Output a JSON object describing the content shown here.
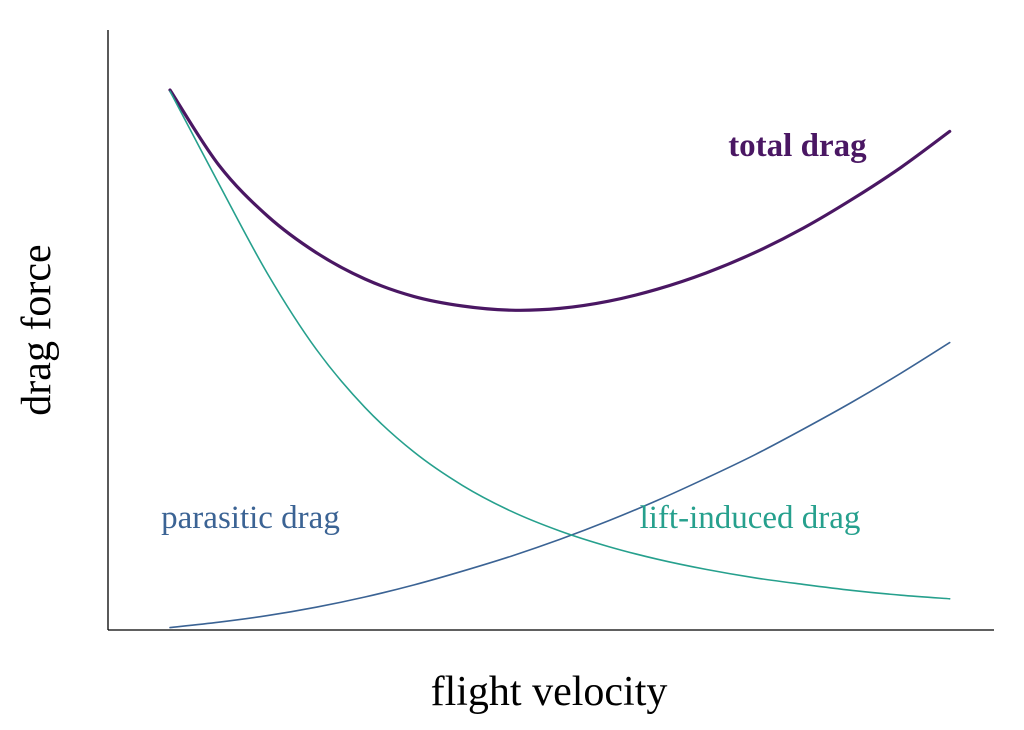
{
  "chart_data": {
    "type": "line",
    "title": "",
    "xlabel": "flight velocity",
    "ylabel": "drag force",
    "xlim": [
      0,
      1
    ],
    "ylim": [
      0,
      1
    ],
    "grid": false,
    "x_tick_labels": [],
    "y_tick_labels": [],
    "series": [
      {
        "name": "total drag",
        "color": "#4a1763",
        "emphasis": "bold",
        "x": [
          0.07,
          0.125,
          0.18,
          0.235,
          0.29,
          0.345,
          0.4,
          0.455,
          0.51,
          0.565,
          0.62,
          0.675,
          0.73,
          0.785,
          0.84,
          0.895,
          0.95
        ],
        "y": [
          0.9,
          0.775,
          0.69,
          0.629,
          0.585,
          0.556,
          0.54,
          0.533,
          0.536,
          0.548,
          0.568,
          0.595,
          0.629,
          0.67,
          0.718,
          0.771,
          0.831
        ]
      },
      {
        "name": "parasitic drag",
        "color": "#3b6394",
        "emphasis": "normal",
        "x": [
          0.07,
          0.125,
          0.18,
          0.235,
          0.29,
          0.345,
          0.4,
          0.455,
          0.51,
          0.565,
          0.62,
          0.675,
          0.73,
          0.785,
          0.84,
          0.895,
          0.95
        ],
        "y": [
          0.004,
          0.013,
          0.024,
          0.038,
          0.055,
          0.075,
          0.098,
          0.123,
          0.151,
          0.182,
          0.216,
          0.253,
          0.292,
          0.335,
          0.38,
          0.428,
          0.479
        ]
      },
      {
        "name": "lift-induced drag",
        "color": "#26a08d",
        "emphasis": "normal",
        "x": [
          0.07,
          0.125,
          0.18,
          0.235,
          0.29,
          0.345,
          0.4,
          0.455,
          0.51,
          0.565,
          0.62,
          0.675,
          0.73,
          0.785,
          0.84,
          0.895,
          0.95
        ],
        "y": [
          0.898,
          0.744,
          0.594,
          0.468,
          0.371,
          0.297,
          0.241,
          0.198,
          0.165,
          0.139,
          0.118,
          0.101,
          0.087,
          0.076,
          0.066,
          0.058,
          0.052
        ]
      }
    ],
    "series_labels": [
      {
        "text": "total drag",
        "series": 0,
        "x": 0.7,
        "y": 0.79
      },
      {
        "text": "parasitic drag",
        "series": 1,
        "x": 0.06,
        "y": 0.17
      },
      {
        "text": "lift-induced drag",
        "series": 2,
        "x": 0.6,
        "y": 0.17
      }
    ]
  }
}
